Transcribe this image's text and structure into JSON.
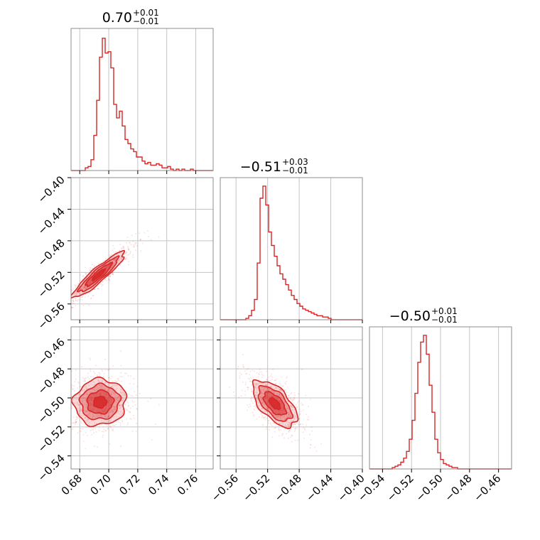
{
  "chart_data": {
    "type": "corner",
    "color": "#d62728",
    "grid": true,
    "parameters": [
      {
        "title": {
          "main": "0.70",
          "plus": "+0.01",
          "minus": "−0.01"
        },
        "range": [
          0.674,
          0.772
        ],
        "ticks": [
          0.68,
          0.7,
          0.72,
          0.74,
          0.76
        ],
        "tick_labels": [
          "0.68",
          "0.70",
          "0.72",
          "0.74",
          "0.76"
        ],
        "hist": [
          0.0,
          0.0,
          0.0,
          0.0,
          0.0,
          0.02,
          0.03,
          0.08,
          0.26,
          0.52,
          0.84,
          0.98,
          0.87,
          0.88,
          0.76,
          0.49,
          0.39,
          0.44,
          0.33,
          0.23,
          0.2,
          0.16,
          0.14,
          0.1,
          0.1,
          0.07,
          0.05,
          0.06,
          0.04,
          0.04,
          0.05,
          0.04,
          0.02,
          0.02,
          0.03,
          0.01,
          0.0,
          0.01,
          0.0,
          0.01,
          0.0,
          0.0,
          0.01,
          0.0,
          0.0,
          0.0,
          0.0,
          0.0,
          0.0,
          0.0
        ]
      },
      {
        "title": {
          "main": "−0.51",
          "plus": "+0.03",
          "minus": "−0.01"
        },
        "range": [
          -0.58,
          -0.4
        ],
        "ticks": [
          -0.56,
          -0.52,
          -0.48,
          -0.44,
          -0.4
        ],
        "tick_labels": [
          "−0.56",
          "−0.52",
          "−0.48",
          "−0.44",
          "−0.40"
        ],
        "hist": [
          0.0,
          0.0,
          0.0,
          0.0,
          0.0,
          0.0,
          0.0,
          0.0,
          0.0,
          0.01,
          0.03,
          0.07,
          0.15,
          0.42,
          0.9,
          0.99,
          0.85,
          0.65,
          0.55,
          0.47,
          0.4,
          0.34,
          0.3,
          0.26,
          0.22,
          0.18,
          0.15,
          0.12,
          0.1,
          0.08,
          0.07,
          0.06,
          0.05,
          0.04,
          0.03,
          0.03,
          0.02,
          0.02,
          0.01,
          0.0,
          0.0,
          0.0,
          0.0,
          0.0,
          0.0,
          0.0,
          0.0,
          0.0,
          0.0,
          0.0
        ]
      },
      {
        "title": {
          "main": "−0.50",
          "plus": "+0.01",
          "minus": "−0.01"
        },
        "range": [
          -0.549,
          -0.451
        ],
        "ticks": [
          -0.54,
          -0.52,
          -0.5,
          -0.48,
          -0.46
        ],
        "tick_labels": [
          "−0.54",
          "−0.52",
          "−0.50",
          "−0.48",
          "−0.46"
        ],
        "hist": [
          0.0,
          0.0,
          0.0,
          0.0,
          0.0,
          0.0,
          0.0,
          0.0,
          0.01,
          0.02,
          0.03,
          0.05,
          0.08,
          0.13,
          0.22,
          0.36,
          0.56,
          0.79,
          0.94,
          0.99,
          0.85,
          0.62,
          0.42,
          0.22,
          0.12,
          0.07,
          0.04,
          0.03,
          0.02,
          0.01,
          0.01,
          0.0,
          0.0,
          0.0,
          0.0,
          0.0,
          0.0,
          0.0,
          0.0,
          0.0,
          0.0,
          0.0,
          0.0,
          0.0,
          0.0,
          0.0,
          0.0,
          0.0,
          0.0,
          0.0
        ]
      }
    ],
    "joint": [
      {
        "x_param": 0,
        "y_param": 1,
        "center": [
          0.693,
          -0.523
        ],
        "spread": [
          0.009,
          0.0145
        ],
        "correlation": 0.92
      },
      {
        "x_param": 0,
        "y_param": 2,
        "center": [
          0.694,
          -0.503
        ],
        "spread": [
          0.009,
          0.008
        ],
        "correlation": 0.05
      },
      {
        "x_param": 1,
        "y_param": 2,
        "center": [
          -0.511,
          -0.504
        ],
        "spread": [
          0.014,
          0.008
        ],
        "correlation": -0.6
      }
    ]
  }
}
